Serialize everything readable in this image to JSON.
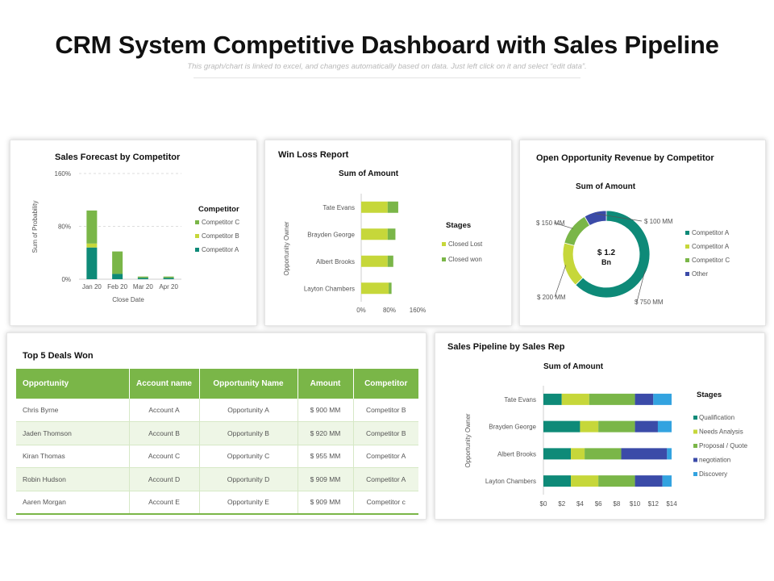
{
  "header": {
    "title": "CRM System Competitive Dashboard with Sales Pipeline",
    "subtitle": "This graph/chart is linked to excel, and changes automatically based on data. Just left click on it and select “edit data”."
  },
  "colors": {
    "teal": "#0e8a78",
    "lime": "#c6d73a",
    "green": "#7ab648",
    "navy": "#3b4ba8",
    "blue": "#33a3e0"
  },
  "deals": {
    "title": "Top 5 Deals Won",
    "columns": [
      "Opportunity",
      "Account name",
      "Opportunity Name",
      "Amount",
      "Competitor"
    ],
    "rows": [
      [
        "Chris Byrne",
        "Account A",
        "Opportunity A",
        "$ 900 MM",
        "Competitor B"
      ],
      [
        "Jaden Thomson",
        "Account B",
        "Opportunity B",
        "$ 920 MM",
        "Competitor B"
      ],
      [
        "Kiran Thomas",
        "Account C",
        "Opportunity C",
        "$ 955 MM",
        "Competitor A"
      ],
      [
        "Robin Hudson",
        "Account D",
        "Opportunity D",
        "$ 909 MM",
        "Competitor A"
      ],
      [
        "Aaren Morgan",
        "Account E",
        "Opportunity E",
        "$ 909 MM",
        "Competitor c"
      ]
    ]
  },
  "chart_data": [
    {
      "type": "bar",
      "stacked": true,
      "title": "Sales Forecast by Competitor",
      "xlabel": "Close Date",
      "ylabel": "Sum of Probability",
      "ylim": [
        0,
        160
      ],
      "yticks": [
        "0%",
        "80%",
        "160%"
      ],
      "categories": [
        "Jan 20",
        "Feb 20",
        "Mar 20",
        "Apr 20"
      ],
      "legend_title": "Competitor",
      "legend_position": "right",
      "series": [
        {
          "name": "Competitor A",
          "color": "#0e8a78",
          "values": [
            48,
            8,
            2,
            2
          ]
        },
        {
          "name": "Competitor B",
          "color": "#c6d73a",
          "values": [
            6,
            0,
            0,
            0
          ]
        },
        {
          "name": "Competitor C",
          "color": "#7ab648",
          "values": [
            50,
            34,
            2,
            2
          ]
        }
      ],
      "grid": true
    },
    {
      "type": "bar",
      "orientation": "horizontal",
      "stacked": true,
      "title": "Win Loss Report",
      "subtitle": "Sum of Amount",
      "ylabel": "Opportunity Owner",
      "xlim": [
        0,
        160
      ],
      "xticks": [
        "0%",
        "80%",
        "160%"
      ],
      "categories": [
        "Tate Evans",
        "Brayden George",
        "Albert Brooks",
        "Layton Chambers"
      ],
      "legend_title": "Stages",
      "legend_position": "right",
      "series": [
        {
          "name": "Closed Lost",
          "color": "#c6d73a",
          "values": [
            75,
            75,
            75,
            78
          ]
        },
        {
          "name": "Closed won",
          "color": "#7ab648",
          "values": [
            30,
            22,
            16,
            8
          ]
        }
      ]
    },
    {
      "type": "pie",
      "donut": true,
      "title": "Open Opportunity Revenue by Competitor",
      "subtitle": "Sum of Amount",
      "center_label": [
        "$ 1.2",
        "Bn"
      ],
      "legend_position": "right",
      "series": [
        {
          "name": "Competitor A",
          "color": "#0e8a78",
          "value": 750,
          "label": "$ 750 MM"
        },
        {
          "name": "Competitor A",
          "color": "#c6d73a",
          "value": 200,
          "label": "$ 200 MM"
        },
        {
          "name": "Competitor C",
          "color": "#7ab648",
          "value": 150,
          "label": "$ 150 MM"
        },
        {
          "name": "Other",
          "color": "#3b4ba8",
          "value": 100,
          "label": "$ 100 MM"
        }
      ]
    },
    {
      "type": "bar",
      "orientation": "horizontal",
      "stacked": true,
      "title": "Sales Pipeline by Sales Rep",
      "subtitle": "Sum of Amount",
      "ylabel": "Opportunity Owner",
      "xlim": [
        0,
        14
      ],
      "xticks": [
        "$0",
        "$2",
        "$4",
        "$6",
        "$8",
        "$10",
        "$12",
        "$14"
      ],
      "categories": [
        "Tate Evans",
        "Brayden George",
        "Albert Brooks",
        "Layton Chambers"
      ],
      "legend_title": "Stages",
      "legend_position": "right",
      "series": [
        {
          "name": "Qualification",
          "color": "#0e8a78",
          "values": [
            2,
            4,
            3,
            3
          ]
        },
        {
          "name": "Needs Analysis",
          "color": "#c6d73a",
          "values": [
            3,
            2,
            1.5,
            3
          ]
        },
        {
          "name": "Proposal / Quote",
          "color": "#7ab648",
          "values": [
            5,
            4,
            4,
            4
          ]
        },
        {
          "name": "negotiation",
          "color": "#3b4ba8",
          "values": [
            2,
            2.5,
            5,
            3
          ]
        },
        {
          "name": "Discovery",
          "color": "#33a3e0",
          "values": [
            2,
            1.5,
            0.5,
            1
          ]
        }
      ]
    }
  ]
}
